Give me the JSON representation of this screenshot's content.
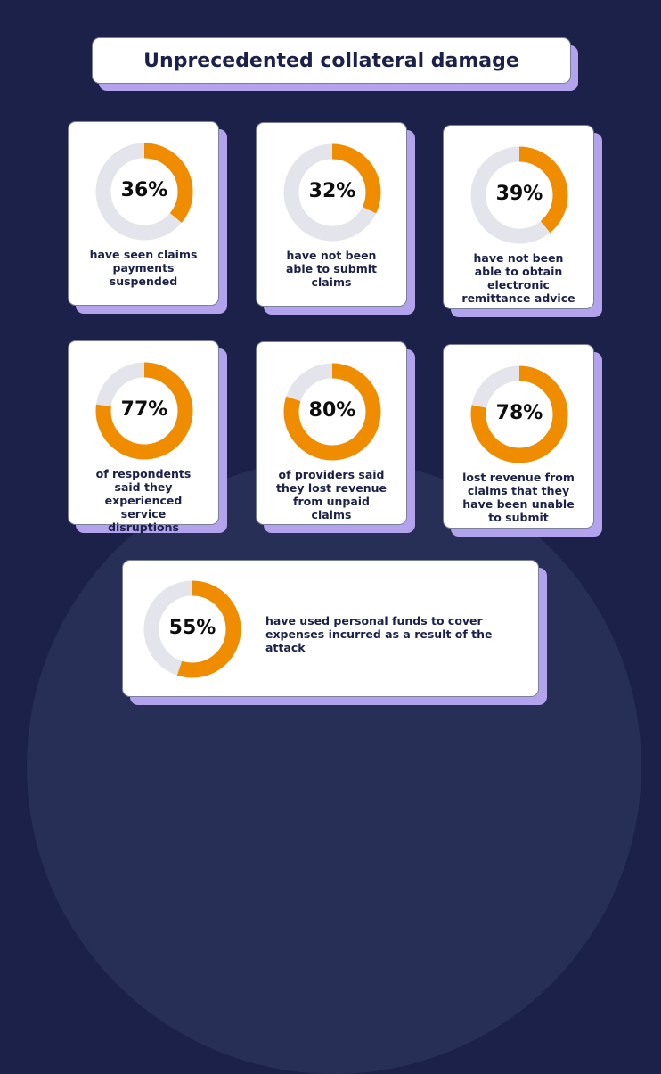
{
  "colors": {
    "background": "#1b2149",
    "accent": "#f08c00",
    "track": "#e4e5ec",
    "shadow": "#b3a3ec",
    "text": "#1b2149"
  },
  "chart_data": {
    "type": "donut",
    "title": "Unprecedented collateral damage",
    "items": [
      {
        "value": 36,
        "label": "36%",
        "caption": "have seen claims payments suspended"
      },
      {
        "value": 32,
        "label": "32%",
        "caption": "have not been able to submit claims"
      },
      {
        "value": 39,
        "label": "39%",
        "caption": "have not been able to obtain electronic remittance advice"
      },
      {
        "value": 77,
        "label": "77%",
        "caption": "of respondents said they experienced service disruptions"
      },
      {
        "value": 80,
        "label": "80%",
        "caption": "of providers said they lost revenue from unpaid claims"
      },
      {
        "value": 78,
        "label": "78%",
        "caption": "lost revenue from claims that they have been unable to submit"
      },
      {
        "value": 55,
        "label": "55%",
        "caption": "have used personal funds to cover expenses incurred as a result of the attack"
      }
    ]
  }
}
